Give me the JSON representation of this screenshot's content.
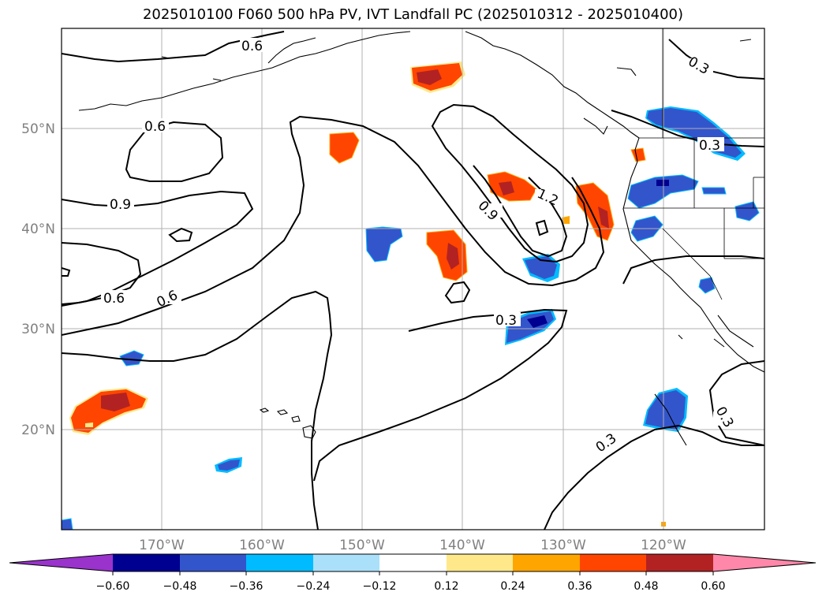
{
  "title": "2025010100 F060 500 hPa PV, IVT Landfall PC (2025010312 - 2025010400)",
  "lat_labels": [
    "50°N",
    "40°N",
    "30°N",
    "20°N"
  ],
  "lon_labels": [
    "170°W",
    "160°W",
    "150°W",
    "140°W",
    "130°W",
    "120°W"
  ],
  "contour_labels": [
    "0.6",
    "0.6",
    "0.9",
    "0.6",
    "0.6",
    "0.9",
    "1.2",
    "0.3",
    "0.3",
    "0.3",
    "0.3",
    "0.3"
  ],
  "colorbar": {
    "tick_labels": [
      "−0.60",
      "−0.48",
      "−0.36",
      "−0.24",
      "−0.12",
      "0.12",
      "0.24",
      "0.36",
      "0.48",
      "0.60"
    ],
    "colors": [
      "#9933cc",
      "#000090",
      "#3355cc",
      "#00bbff",
      "#aae0fa",
      "#ffffff",
      "#ffe88a",
      "#ffa500",
      "#ff4500",
      "#b22222",
      "#ff88aa"
    ]
  }
}
